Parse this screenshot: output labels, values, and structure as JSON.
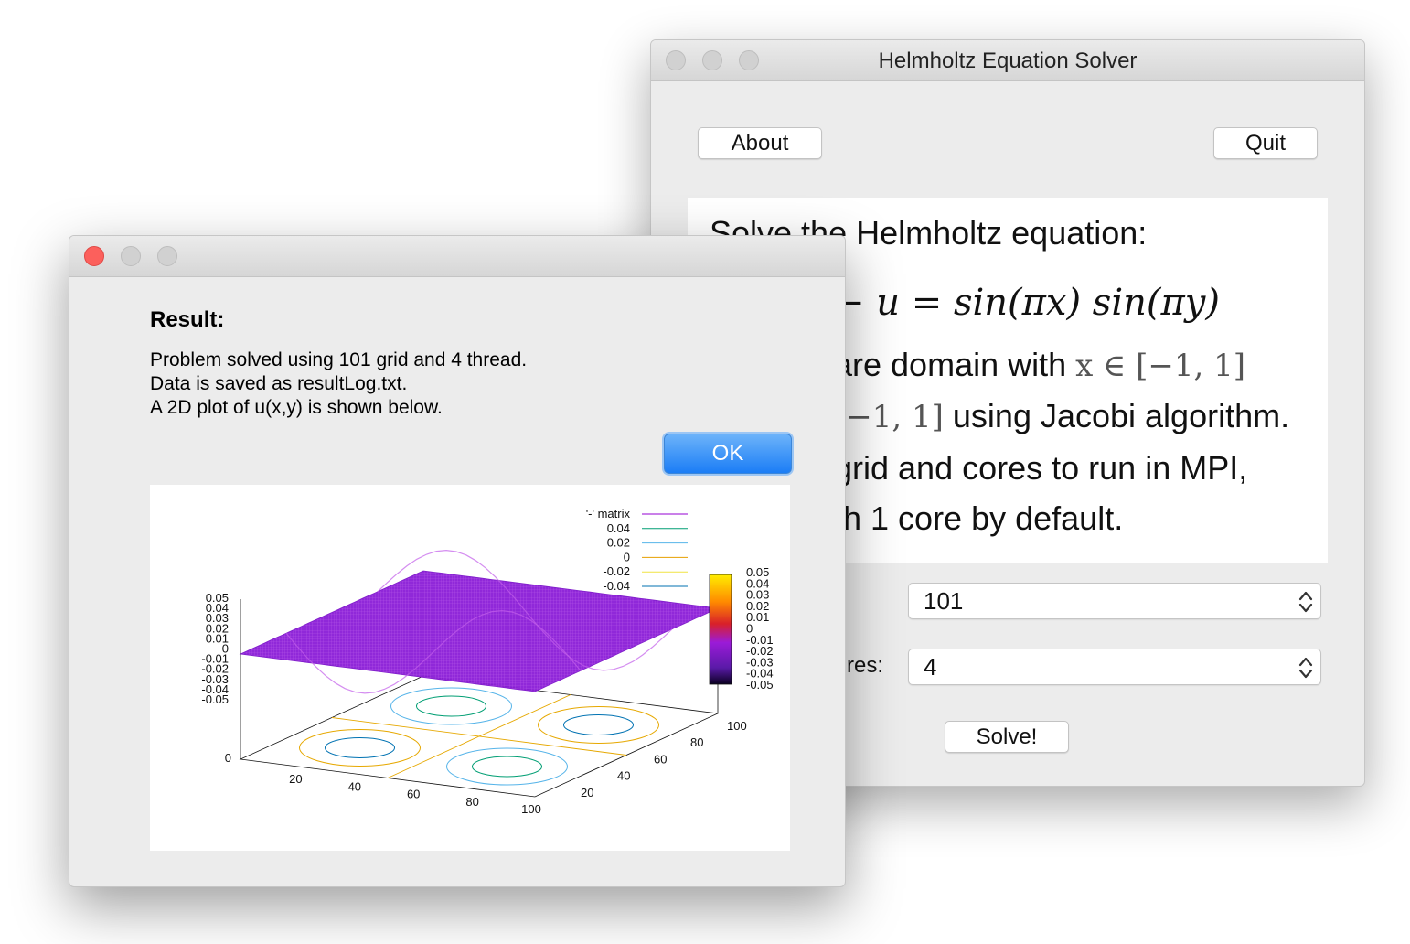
{
  "main_window": {
    "title": "Helmholtz Equation Solver",
    "about_label": "About",
    "quit_label": "Quit",
    "equation_lines": {
      "line1": "Solve the Helmholtz equation:",
      "line2": "− u = sin(πx) sin(πy)",
      "line3_text": "are domain with ",
      "line3_math": "x ∈ [−1, 1]",
      "line4_math": "[−1, 1]",
      "line4_text": " using Jacobi algorithm.",
      "line5": "grid and cores to run in MPI,",
      "line6": "th 1 core by default."
    },
    "grid_select_value": "101",
    "cores_label_partial": "res:",
    "cores_select_value": "4",
    "solve_label": "Solve!"
  },
  "result_window": {
    "heading": "Result:",
    "messages": [
      "Problem solved using 101 grid and 4 thread.",
      "Data is saved  as resultLog.txt.",
      "A 2D plot of u(x,y) is shown below."
    ],
    "ok_label": "OK"
  },
  "chart_data": {
    "type": "surface3d",
    "z_axis_ticks": [
      "0.05",
      "0.04",
      "0.03",
      "0.02",
      "0.01",
      "0",
      "-0.01",
      "-0.02",
      "-0.03",
      "-0.04",
      "-0.05"
    ],
    "colorbar_ticks": [
      "0.05",
      "0.04",
      "0.03",
      "0.02",
      "0.01",
      "0",
      "-0.01",
      "-0.02",
      "-0.03",
      "-0.04",
      "-0.05"
    ],
    "x_ticks": [
      "0",
      "20",
      "40",
      "60",
      "80",
      "100"
    ],
    "y_ticks": [
      "20",
      "40",
      "60",
      "80",
      "100"
    ],
    "zlim": [
      -0.05,
      0.05
    ],
    "legend": {
      "placement": "top-right",
      "entries": [
        {
          "label": "'-' matrix",
          "color": "#9400d3"
        },
        {
          "label": "0.04",
          "color": "#009e73"
        },
        {
          "label": "0.02",
          "color": "#56b4e9"
        },
        {
          "label": "0",
          "color": "#e69f00"
        },
        {
          "label": "-0.02",
          "color": "#f0e442"
        },
        {
          "label": "-0.04",
          "color": "#0072b2"
        }
      ]
    },
    "colors": {
      "surface": "#8a1ad6",
      "surface_low": "#6a0fc8",
      "surface_high": "#a02bdb"
    }
  }
}
